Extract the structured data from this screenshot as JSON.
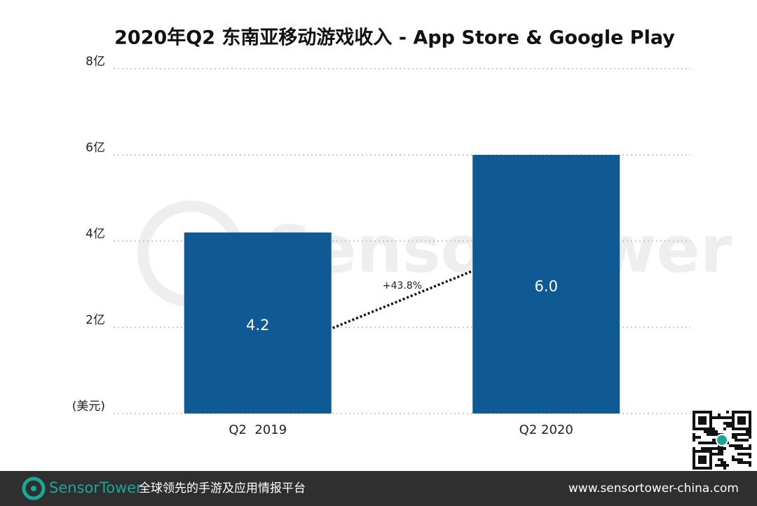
{
  "chart_data": {
    "type": "bar",
    "title": "2020年Q2 东南亚移动游戏收入 - App Store & Google Play",
    "categories": [
      "Q2  2019",
      "Q2 2020"
    ],
    "values": [
      4.2,
      6.0
    ],
    "value_labels": [
      "4.2",
      "6.0"
    ],
    "color": "#0f5a94",
    "ylim": [
      0,
      8
    ],
    "yticks": [
      {
        "value": 0,
        "label": "(美元)"
      },
      {
        "value": 2,
        "label": "2亿"
      },
      {
        "value": 4,
        "label": "4亿"
      },
      {
        "value": 6,
        "label": "6亿"
      },
      {
        "value": 8,
        "label": "8亿"
      }
    ],
    "grid": true,
    "annotation": "+43.8%",
    "watermark": "SensorTower"
  },
  "footer": {
    "brand": "SensorTower",
    "slogan": "全球领先的手游及应用情报平台",
    "url": "www.sensortower-china.com"
  }
}
